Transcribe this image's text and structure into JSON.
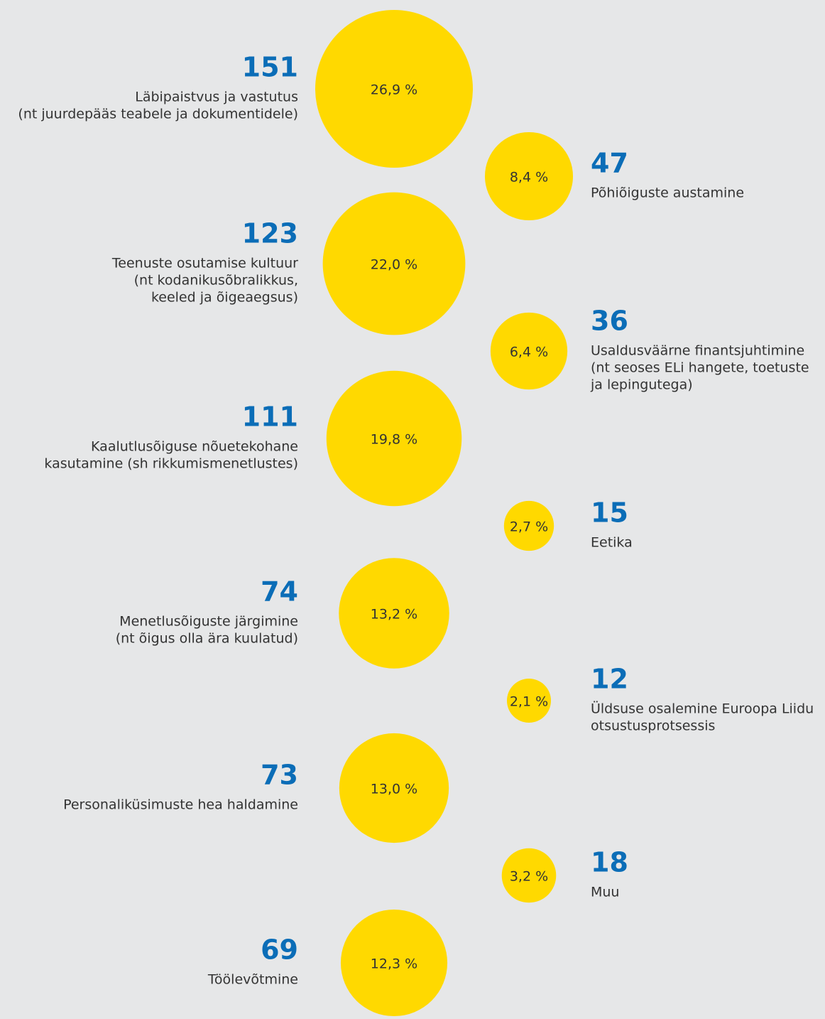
{
  "chart_data": {
    "type": "bubble",
    "categories": [
      [
        "Läbipaistvus ja vastutus",
        "(nt juurdepääs teabele ja dokumentidele)"
      ],
      [
        "Põhiõiguste austamine"
      ],
      [
        "Teenuste osutamise kultuur",
        "(nt kodanikusõbralikkus,",
        "keeled ja õigeaegsus)"
      ],
      [
        "Usaldusväärne finantsjuhtimine",
        "(nt seoses ELi hangete, toetuste",
        "ja lepingutega)"
      ],
      [
        "Kaalutlusõiguse nõuetekohane",
        "kasutamine (sh rikkumismenetlustes)"
      ],
      [
        "Eetika"
      ],
      [
        "Menetlusõiguste järgimine",
        "(nt õigus olla ära kuulatud)"
      ],
      [
        "Üldsuse osalemine Euroopa Liidu",
        "otsustusprotsessis"
      ],
      [
        "Personaliküsimuste hea haldamine"
      ],
      [
        "Muu"
      ],
      [
        "Töölevõtmine"
      ]
    ],
    "values": [
      151,
      47,
      123,
      36,
      111,
      15,
      74,
      12,
      73,
      18,
      69
    ],
    "shares": [
      26.9,
      8.4,
      22.0,
      6.4,
      19.8,
      2.7,
      13.2,
      2.1,
      13.0,
      3.2,
      12.3
    ],
    "share_labels": [
      "26,9 %",
      "8,4 %",
      "22,0 %",
      "6,4 %",
      "19,8 %",
      "2,7 %",
      "13,2 %",
      "2,1 %",
      "13,0 %",
      "3,2 %",
      "12,3 %"
    ],
    "color": "#ffd900",
    "number_color": "#0b6db7"
  }
}
